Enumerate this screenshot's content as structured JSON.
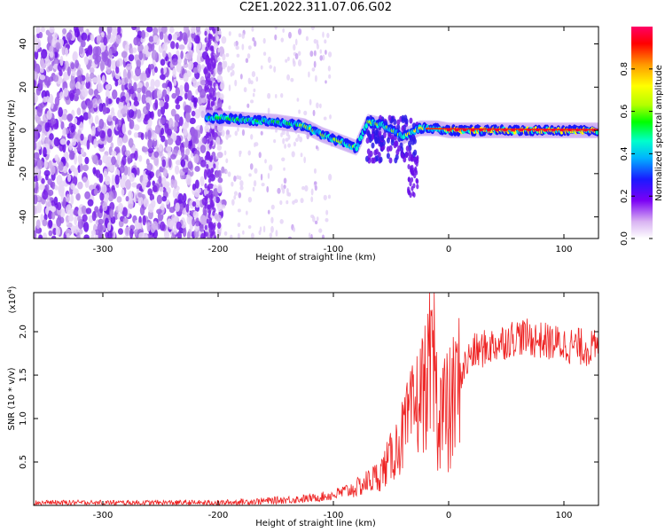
{
  "title": "C2E1.2022.311.07.06.G02",
  "chart_data": [
    {
      "type": "heatmap",
      "xlabel": "Height of straight line (km)",
      "ylabel": "Frequency (Hz)",
      "xlim": [
        -360,
        130
      ],
      "ylim": [
        -50,
        48
      ],
      "xticks": [
        -300,
        -200,
        -100,
        0,
        100
      ],
      "yticks": [
        -40,
        -20,
        0,
        20,
        40
      ],
      "colorbar": {
        "label": "Normalized spectral amplitude",
        "range": [
          0,
          1
        ],
        "ticks": [
          "0.0",
          "0.2",
          "0.4",
          "0.6",
          "0.8"
        ],
        "colors": [
          "#ffffff",
          "#d9b3f2",
          "#7b00f5",
          "#1a1aff",
          "#00b3ff",
          "#00ffcc",
          "#00ff00",
          "#b3ff00",
          "#ffff00",
          "#ff9900",
          "#ff0000",
          "#ff0066"
        ]
      },
      "signal_track": [
        {
          "x": -210,
          "y": 6
        },
        {
          "x": -180,
          "y": 5
        },
        {
          "x": -150,
          "y": 4
        },
        {
          "x": -125,
          "y": 2
        },
        {
          "x": -110,
          "y": -2
        },
        {
          "x": -95,
          "y": -5
        },
        {
          "x": -80,
          "y": -8
        },
        {
          "x": -70,
          "y": 4
        },
        {
          "x": -55,
          "y": 2
        },
        {
          "x": -40,
          "y": -3
        },
        {
          "x": -25,
          "y": 1
        },
        {
          "x": -10,
          "y": 1
        },
        {
          "x": 0,
          "y": 0
        },
        {
          "x": 130,
          "y": 0
        }
      ],
      "noise_edge_x": -205
    },
    {
      "type": "line",
      "xlabel": "Height of straight line (km)",
      "ylabel": "SNR (10 * v/v)",
      "scale_label": "(x10",
      "scale_exponent": "4",
      "xlim": [
        -360,
        130
      ],
      "ylim": [
        0,
        2.45
      ],
      "xticks": [
        -300,
        -200,
        -100,
        0,
        100
      ],
      "yticks": [
        "0.5",
        "1.0",
        "1.5",
        "2.0"
      ],
      "line_color": "#ee2222",
      "series": [
        {
          "x": [
            -360,
            -200,
            -160,
            -120,
            -100,
            -80,
            -60,
            -50,
            -40,
            -30,
            -20,
            -15,
            -10,
            0,
            10,
            20,
            40,
            60,
            80,
            100,
            130
          ],
          "y": [
            0.03,
            0.03,
            0.05,
            0.08,
            0.12,
            0.2,
            0.35,
            0.55,
            0.8,
            1.1,
            1.4,
            1.5,
            1.2,
            1.0,
            1.5,
            1.75,
            1.85,
            1.95,
            1.9,
            1.85,
            1.8
          ]
        }
      ]
    }
  ]
}
